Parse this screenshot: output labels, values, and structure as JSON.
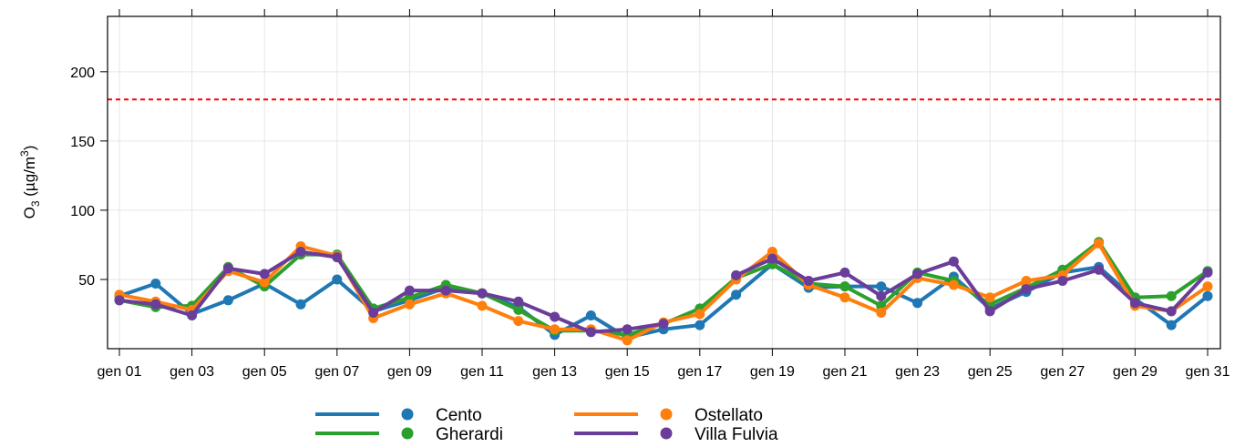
{
  "chart_data": {
    "type": "line",
    "ylabel": "O3 (µg/m3)",
    "ylabel_parts": {
      "main": "O",
      "sub": "3",
      "unit_open": " (µg/m",
      "sup": "3",
      "unit_close": ")"
    },
    "ylim": [
      0,
      240
    ],
    "yticks": [
      50,
      100,
      150,
      200
    ],
    "ytick_labels": [
      "50",
      "100",
      "150",
      "200"
    ],
    "x": [
      "gen 01",
      "gen 02",
      "gen 03",
      "gen 04",
      "gen 05",
      "gen 06",
      "gen 07",
      "gen 08",
      "gen 09",
      "gen 10",
      "gen 11",
      "gen 12",
      "gen 13",
      "gen 14",
      "gen 15",
      "gen 16",
      "gen 17",
      "gen 18",
      "gen 19",
      "gen 20",
      "gen 21",
      "gen 22",
      "gen 23",
      "gen 24",
      "gen 25",
      "gen 26",
      "gen 27",
      "gen 28",
      "gen 29",
      "gen 30",
      "gen 31"
    ],
    "xtick_labels": [
      "gen 01",
      "gen 03",
      "gen 05",
      "gen 07",
      "gen 09",
      "gen 11",
      "gen 13",
      "gen 15",
      "gen 17",
      "gen 19",
      "gen 21",
      "gen 23",
      "gen 25",
      "gen 27",
      "gen 29",
      "gen 31"
    ],
    "threshold": {
      "value": 180,
      "color": "#ff0000",
      "style": "dashed"
    },
    "grid": true,
    "legend_position": "bottom",
    "series": [
      {
        "name": "Cento",
        "color": "#1f77b4",
        "values": [
          38,
          47,
          25,
          35,
          47,
          32,
          50,
          27,
          35,
          44,
          40,
          30,
          10,
          24,
          8,
          14,
          17,
          39,
          61,
          44,
          45,
          45,
          33,
          52,
          29,
          41,
          55,
          59,
          36,
          17,
          38
        ]
      },
      {
        "name": "Gherardi",
        "color": "#2ca02c",
        "values": [
          35,
          30,
          31,
          59,
          45,
          68,
          68,
          29,
          37,
          46,
          40,
          28,
          13,
          13,
          10,
          18,
          29,
          51,
          61,
          47,
          45,
          31,
          55,
          49,
          32,
          44,
          57,
          77,
          37,
          38,
          56
        ]
      },
      {
        "name": "Ostellato",
        "color": "#ff7f0e",
        "values": [
          39,
          34,
          28,
          56,
          48,
          74,
          67,
          22,
          32,
          40,
          31,
          20,
          14,
          14,
          6,
          19,
          25,
          50,
          70,
          46,
          37,
          26,
          51,
          46,
          37,
          49,
          53,
          76,
          31,
          27,
          45
        ]
      },
      {
        "name": "Villa Fulvia",
        "color": "#6a3d9a",
        "values": [
          35,
          32,
          24,
          58,
          54,
          70,
          66,
          26,
          42,
          42,
          40,
          34,
          23,
          12,
          14,
          18,
          null,
          53,
          65,
          49,
          55,
          38,
          54,
          63,
          27,
          43,
          49,
          57,
          33,
          27,
          55
        ]
      }
    ]
  }
}
